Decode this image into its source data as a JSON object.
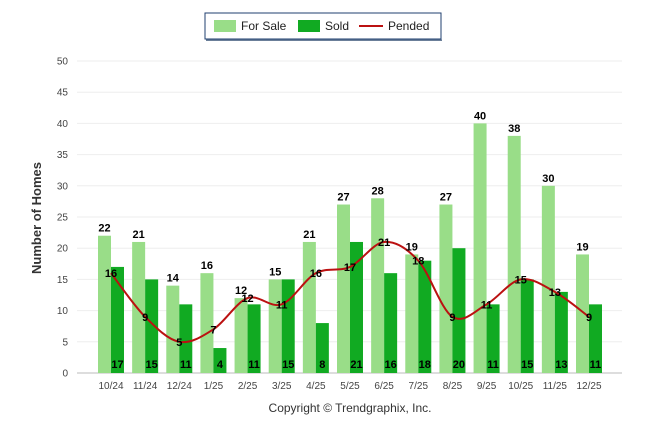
{
  "chart_data": {
    "type": "bar",
    "title": "",
    "xlabel": "",
    "ylabel": "Number of Homes",
    "ylim": [
      0,
      50
    ],
    "yticks": [
      "0",
      "5",
      "10",
      "15",
      "20",
      "25",
      "30",
      "35",
      "40",
      "45",
      "50"
    ],
    "categories": [
      "10/24",
      "11/24",
      "12/24",
      "1/25",
      "2/25",
      "3/25",
      "4/25",
      "5/25",
      "6/25",
      "7/25",
      "8/25",
      "9/25",
      "10/25",
      "11/25",
      "12/25"
    ],
    "series": [
      {
        "name": "For Sale",
        "type": "bar",
        "color": "#99dd88",
        "values": [
          22,
          21,
          14,
          16,
          12,
          15,
          21,
          27,
          28,
          19,
          27,
          40,
          38,
          30,
          19
        ]
      },
      {
        "name": "Sold",
        "type": "bar",
        "color": "#11aa22",
        "values": [
          17,
          15,
          11,
          4,
          11,
          15,
          8,
          21,
          16,
          18,
          20,
          11,
          15,
          13,
          11
        ]
      },
      {
        "name": "Pended",
        "type": "line",
        "color": "#bb1111",
        "values": [
          16,
          9,
          5,
          7,
          12,
          11,
          16,
          17,
          21,
          18,
          9,
          11,
          15,
          13,
          9
        ]
      }
    ],
    "legend": [
      "For Sale",
      "Sold",
      "Pended"
    ],
    "legend_position": "top-center",
    "grid": true,
    "copyright": "Copyright © Trendgraphix, Inc."
  }
}
